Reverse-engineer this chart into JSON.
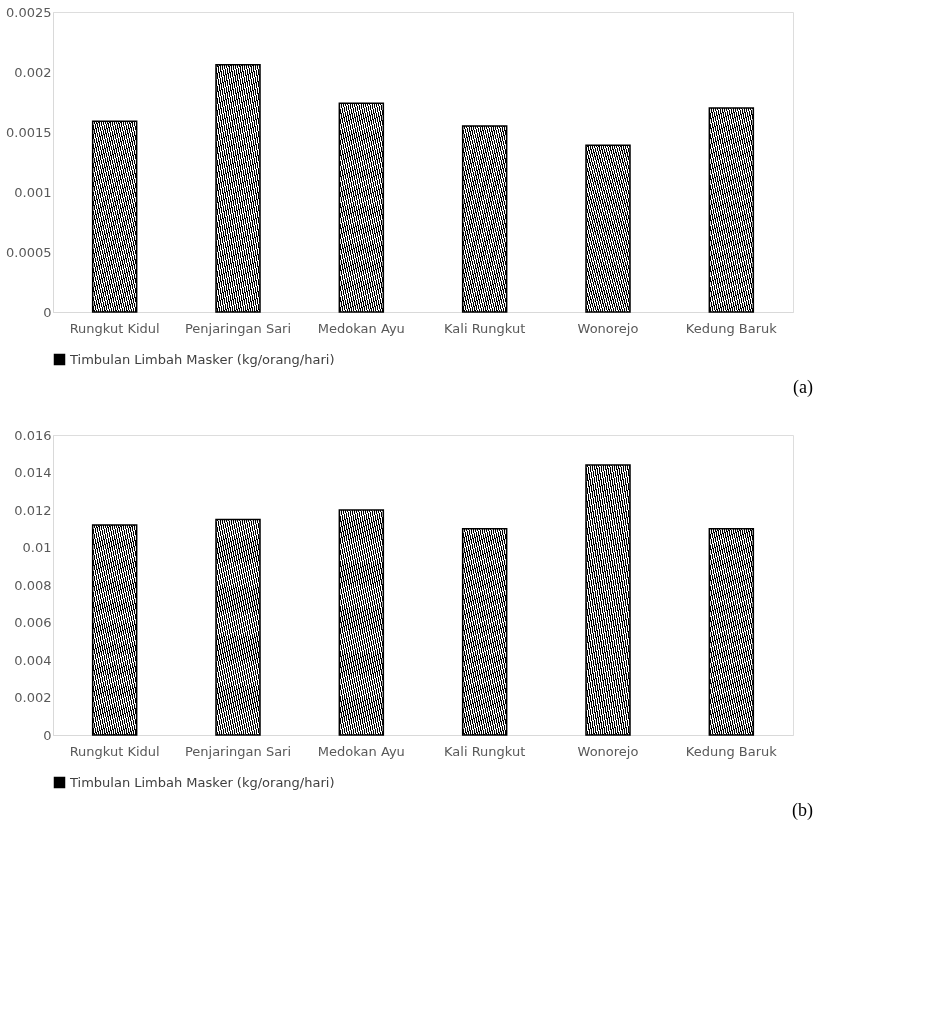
{
  "chart_data": [
    {
      "type": "bar",
      "categories": [
        "Rungkut Kidul",
        "Penjaringan Sari",
        "Medokan Ayu",
        "Kali Rungkut",
        "Wonorejo",
        "Kedung Baruk"
      ],
      "series": [
        {
          "name": "Timbulan Limbah Masker (kg/orang/hari)",
          "color": "#000000",
          "values": [
            0.00159,
            0.00206,
            0.00174,
            0.00155,
            0.00139,
            0.0017
          ]
        }
      ],
      "ylim": [
        0,
        0.0025
      ],
      "yticks": [
        0,
        0.0005,
        0.001,
        0.0015,
        0.002,
        0.0025
      ],
      "grid": false,
      "legend": "bottom",
      "annotations": [
        "(a)"
      ]
    },
    {
      "type": "bar",
      "categories": [
        "Rungkut Kidul",
        "Penjaringan Sari",
        "Medokan Ayu",
        "Kali Rungkut",
        "Wonorejo",
        "Kedung Baruk"
      ],
      "series": [
        {
          "name": "Timbulan Limbah Masker (kg/orang/hari)",
          "color": "#000000",
          "values": [
            0.0112,
            0.0115,
            0.012,
            0.011,
            0.0144,
            0.011
          ]
        }
      ],
      "ylim": [
        0,
        0.016
      ],
      "yticks": [
        0,
        0.002,
        0.004,
        0.006,
        0.008,
        0.01,
        0.012,
        0.014,
        0.016
      ],
      "grid": false,
      "legend": "bottom",
      "annotations": [
        "(b)"
      ]
    }
  ]
}
